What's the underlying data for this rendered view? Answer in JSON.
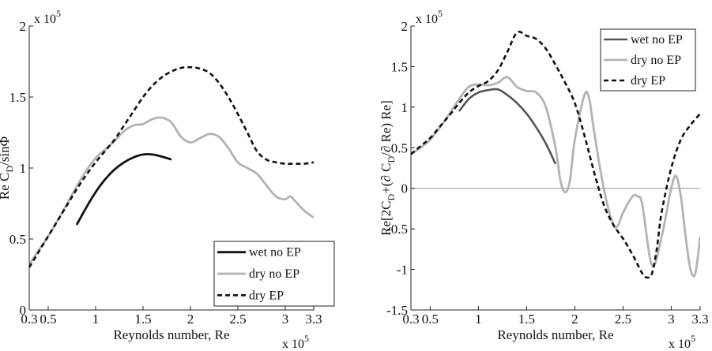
{
  "figure": {
    "background": "#ffffff",
    "axis_color": "#222222"
  },
  "chart_data": [
    {
      "type": "line",
      "xlabel": "Reynolds number, Re",
      "x_multiplier": "x 10",
      "x_multiplier_exponent": "5",
      "y_multiplier": "x 10",
      "y_multiplier_exponent": "5",
      "ylabel": {
        "parts": [
          {
            "text": "Re C",
            "sub": false
          },
          {
            "text": "D",
            "sub": true
          },
          {
            "text": "/sinΦ",
            "sub": false
          }
        ]
      },
      "xlim": [
        0.3,
        3.3
      ],
      "ylim": [
        0,
        2
      ],
      "xticks": [
        0.3,
        0.5,
        1,
        1.5,
        2,
        2.5,
        3,
        3.3
      ],
      "xticklabels": [
        "0.3",
        "0.5",
        "1",
        "1.5",
        "2",
        "2.5",
        "3",
        "3.3"
      ],
      "yticks": [
        0,
        0.5,
        1,
        1.5,
        2
      ],
      "yticklabels": [
        "0",
        "0.5",
        "1",
        "1.5",
        "2"
      ],
      "grid": false,
      "legend_position": "bottom-right",
      "series": [
        {
          "name": "wet no EP",
          "color": "#111111",
          "dash": "",
          "width": 2.8,
          "x": [
            0.8,
            0.9,
            1.0,
            1.1,
            1.2,
            1.3,
            1.4,
            1.5,
            1.6,
            1.7,
            1.8
          ],
          "y": [
            0.6,
            0.72,
            0.83,
            0.92,
            0.99,
            1.04,
            1.075,
            1.095,
            1.095,
            1.08,
            1.06
          ]
        },
        {
          "name": "dry no EP",
          "color": "#b3b3b3",
          "dash": "",
          "width": 2.8,
          "x": [
            0.3,
            0.4,
            0.5,
            0.6,
            0.7,
            0.8,
            0.9,
            1.0,
            1.1,
            1.2,
            1.3,
            1.4,
            1.5,
            1.6,
            1.7,
            1.8,
            1.9,
            2.0,
            2.1,
            2.2,
            2.3,
            2.4,
            2.5,
            2.6,
            2.7,
            2.8,
            2.9,
            3.0,
            3.05,
            3.1,
            3.2,
            3.3
          ],
          "y": [
            0.32,
            0.42,
            0.52,
            0.63,
            0.75,
            0.87,
            0.98,
            1.07,
            1.13,
            1.19,
            1.26,
            1.3,
            1.31,
            1.345,
            1.355,
            1.32,
            1.22,
            1.18,
            1.21,
            1.24,
            1.22,
            1.14,
            1.04,
            1.0,
            0.96,
            0.88,
            0.8,
            0.78,
            0.8,
            0.77,
            0.7,
            0.65
          ]
        },
        {
          "name": "dry EP",
          "color": "#111111",
          "dash": "6,4",
          "width": 2.6,
          "x": [
            0.3,
            0.4,
            0.5,
            0.6,
            0.7,
            0.8,
            0.9,
            1.0,
            1.1,
            1.2,
            1.3,
            1.4,
            1.5,
            1.6,
            1.7,
            1.8,
            1.9,
            2.0,
            2.1,
            2.2,
            2.3,
            2.4,
            2.5,
            2.6,
            2.7,
            2.8,
            2.9,
            3.0,
            3.1,
            3.2,
            3.3
          ],
          "y": [
            0.3,
            0.41,
            0.52,
            0.63,
            0.74,
            0.85,
            0.95,
            1.04,
            1.12,
            1.2,
            1.3,
            1.4,
            1.5,
            1.58,
            1.64,
            1.68,
            1.705,
            1.71,
            1.7,
            1.67,
            1.6,
            1.5,
            1.38,
            1.25,
            1.12,
            1.06,
            1.04,
            1.03,
            1.03,
            1.03,
            1.04
          ]
        }
      ]
    },
    {
      "type": "line",
      "xlabel": "Reynolds number, Re",
      "x_multiplier": "x 10",
      "x_multiplier_exponent": "5",
      "y_multiplier": "x 10",
      "y_multiplier_exponent": "5",
      "ylabel": {
        "parts": [
          {
            "text": "Re[2C",
            "sub": false
          },
          {
            "text": "D",
            "sub": true
          },
          {
            "text": "+(∂ C",
            "sub": false
          },
          {
            "text": "D",
            "sub": true
          },
          {
            "text": "/∂ Re) Re]",
            "sub": false
          }
        ]
      },
      "xlim": [
        0.3,
        3.3
      ],
      "ylim": [
        -1.5,
        2
      ],
      "xticks": [
        0.3,
        0.5,
        1,
        1.5,
        2,
        2.5,
        3,
        3.3
      ],
      "xticklabels": [
        "0.3",
        "0.5",
        "1",
        "1.5",
        "2",
        "2.5",
        "3",
        "3.3"
      ],
      "yticks": [
        -1.5,
        -1,
        -0.5,
        0,
        0.5,
        1,
        1.5,
        2
      ],
      "yticklabels": [
        "-1.5",
        "-1",
        "-0.5",
        "0",
        "0.5",
        "1",
        "1.5",
        "2"
      ],
      "grid": false,
      "reference_line_y": 0,
      "legend_position": "top-right",
      "series": [
        {
          "name": "wet no EP",
          "color": "#555555",
          "dash": "",
          "width": 2.6,
          "x": [
            0.8,
            0.9,
            1.0,
            1.1,
            1.2,
            1.3,
            1.4,
            1.5,
            1.6,
            1.7,
            1.8
          ],
          "y": [
            0.95,
            1.1,
            1.18,
            1.21,
            1.22,
            1.15,
            1.05,
            0.92,
            0.75,
            0.55,
            0.3
          ]
        },
        {
          "name": "dry no EP",
          "color": "#b3b3b3",
          "dash": "",
          "width": 2.8,
          "x": [
            0.3,
            0.4,
            0.5,
            0.6,
            0.7,
            0.8,
            0.9,
            1.0,
            1.1,
            1.2,
            1.3,
            1.4,
            1.5,
            1.6,
            1.7,
            1.8,
            1.85,
            1.9,
            1.95,
            2.0,
            2.1,
            2.15,
            2.2,
            2.3,
            2.4,
            2.45,
            2.5,
            2.6,
            2.65,
            2.7,
            2.8,
            2.9,
            3.0,
            3.05,
            3.1,
            3.15,
            3.2,
            3.25,
            3.3
          ],
          "y": [
            0.42,
            0.5,
            0.6,
            0.75,
            0.92,
            1.1,
            1.25,
            1.28,
            1.27,
            1.3,
            1.37,
            1.25,
            1.2,
            1.18,
            1.0,
            0.5,
            0.1,
            -0.05,
            0.1,
            0.6,
            1.15,
            1.1,
            0.7,
            0.0,
            -0.45,
            -0.45,
            -0.3,
            -0.1,
            -0.1,
            -0.2,
            -0.95,
            -0.6,
            0.0,
            0.15,
            -0.1,
            -0.6,
            -1.0,
            -1.05,
            -0.6
          ]
        },
        {
          "name": "dry EP",
          "color": "#111111",
          "dash": "6,4",
          "width": 2.6,
          "x": [
            0.3,
            0.4,
            0.5,
            0.6,
            0.7,
            0.8,
            0.9,
            1.0,
            1.1,
            1.2,
            1.3,
            1.4,
            1.5,
            1.6,
            1.7,
            1.8,
            1.9,
            2.0,
            2.1,
            2.2,
            2.3,
            2.4,
            2.5,
            2.6,
            2.7,
            2.75,
            2.8,
            2.85,
            2.9,
            3.0,
            3.1,
            3.2,
            3.3
          ],
          "y": [
            0.42,
            0.52,
            0.62,
            0.76,
            0.9,
            1.05,
            1.18,
            1.26,
            1.32,
            1.45,
            1.68,
            1.92,
            1.88,
            1.84,
            1.72,
            1.52,
            1.3,
            1.05,
            0.65,
            0.2,
            -0.2,
            -0.45,
            -0.62,
            -0.82,
            -1.05,
            -1.1,
            -1.05,
            -0.75,
            -0.3,
            0.25,
            0.6,
            0.78,
            0.92
          ]
        }
      ]
    }
  ]
}
